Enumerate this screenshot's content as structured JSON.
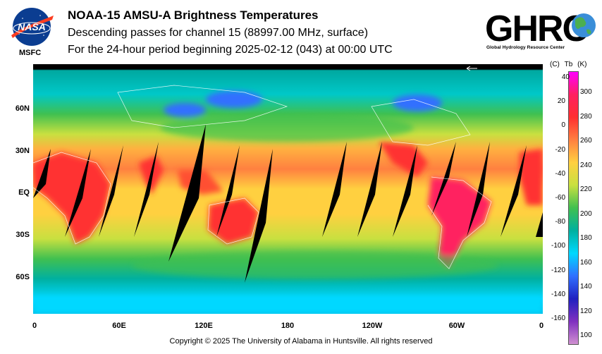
{
  "header": {
    "title": "NOAA-15 AMSU-A Brightness Temperatures",
    "subtitle": "Descending passes for channel 15 (88997.00 MHz, surface)",
    "period": "For the 24-hour period beginning 2025-02-12 (043) at 00:00 UTC"
  },
  "logos": {
    "nasa_text": "NASA",
    "msfc_label": "MSFC",
    "ghrc_text": "GHRC",
    "ghrc_subtitle": "Global Hydrology Resource Center"
  },
  "map": {
    "lat_labels": [
      "60N",
      "30N",
      "EQ",
      "30S",
      "60S"
    ],
    "lon_labels": [
      "0",
      "60E",
      "120E",
      "180",
      "120W",
      "60W",
      "0"
    ]
  },
  "colorbar": {
    "units_c": "(C)",
    "units_tb": "Tb",
    "units_k": "(K)",
    "celsius": [
      "40",
      "20",
      "0",
      "-20",
      "-40",
      "-60",
      "-80",
      "-100",
      "-120",
      "-140",
      "-160"
    ],
    "kelvin": [
      "300",
      "280",
      "260",
      "240",
      "220",
      "200",
      "180",
      "160",
      "140",
      "120",
      "100"
    ],
    "colors": [
      "#ff00ff",
      "#ff2060",
      "#ff3030",
      "#ff8040",
      "#ffd040",
      "#c8e040",
      "#40c050",
      "#00b0a0",
      "#00d8ff",
      "#3070ff",
      "#2020c0",
      "#8030c0",
      "#d090d0"
    ]
  },
  "footer": {
    "copyright": "Copyright © 2025 The University of Alabama in Huntsville.  All rights reserved"
  }
}
